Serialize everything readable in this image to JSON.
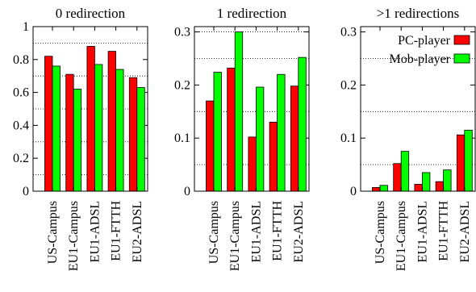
{
  "chart_data": [
    {
      "type": "bar",
      "title": "0 redirection",
      "categories": [
        "US-Campus",
        "EU1-Campus",
        "EU1-ADSL",
        "EU1-FTTH",
        "EU2-ADSL"
      ],
      "series": [
        {
          "name": "PC-player",
          "values": [
            0.82,
            0.71,
            0.88,
            0.85,
            0.69
          ]
        },
        {
          "name": "Mob-player",
          "values": [
            0.76,
            0.62,
            0.77,
            0.74,
            0.63
          ]
        }
      ],
      "ylim": [
        0,
        1
      ],
      "yticks": [
        0,
        0.2,
        0.4,
        0.6,
        0.8,
        1
      ],
      "ytick_labels": [
        "0",
        "0.2",
        "0.4",
        "0.6",
        "0.8",
        "1"
      ],
      "grid_lines": [
        0.1,
        0.3,
        0.5,
        0.7,
        0.9
      ],
      "grid": "dotted, horizontal"
    },
    {
      "type": "bar",
      "title": "1 redirection",
      "categories": [
        "US-Campus",
        "EU1-Campus",
        "EU1-ADSL",
        "EU1-FTTH",
        "EU2-ADSL"
      ],
      "series": [
        {
          "name": "PC-player",
          "values": [
            0.17,
            0.232,
            0.102,
            0.13,
            0.198
          ]
        },
        {
          "name": "Mob-player",
          "values": [
            0.224,
            0.3,
            0.196,
            0.22,
            0.252
          ]
        }
      ],
      "ylim": [
        0,
        0.31
      ],
      "yticks": [
        0,
        0.1,
        0.2,
        0.3
      ],
      "ytick_labels": [
        "0",
        "0.1",
        "0.2",
        "0.3"
      ],
      "grid_lines": [
        0.05,
        0.15,
        0.25,
        0.3
      ],
      "grid": "dotted, horizontal"
    },
    {
      "type": "bar",
      "title": ">1 redirections",
      "categories": [
        "US-Campus",
        "EU1-Campus",
        "EU1-ADSL",
        "EU1-FTTH",
        "EU2-ADSL"
      ],
      "series": [
        {
          "name": "PC-player",
          "values": [
            0.007,
            0.052,
            0.013,
            0.018,
            0.106
          ]
        },
        {
          "name": "Mob-player",
          "values": [
            0.011,
            0.075,
            0.035,
            0.04,
            0.115
          ]
        }
      ],
      "ylim": [
        0,
        0.31
      ],
      "yticks": [
        0,
        0.1,
        0.2,
        0.3
      ],
      "ytick_labels": [
        "0",
        "0.1",
        "0.2",
        "0.3"
      ],
      "grid_lines": [
        0.05,
        0.15,
        0.25
      ],
      "grid": "dotted, horizontal",
      "legend": {
        "placement": "top-right",
        "entries": [
          {
            "label": "PC-player",
            "color": "#ff0000"
          },
          {
            "label": "Mob-player",
            "color": "#00ff00"
          }
        ]
      }
    }
  ],
  "colors": {
    "pc": "#ff0000",
    "mob": "#00ff00",
    "bar_edge": "#000000"
  }
}
